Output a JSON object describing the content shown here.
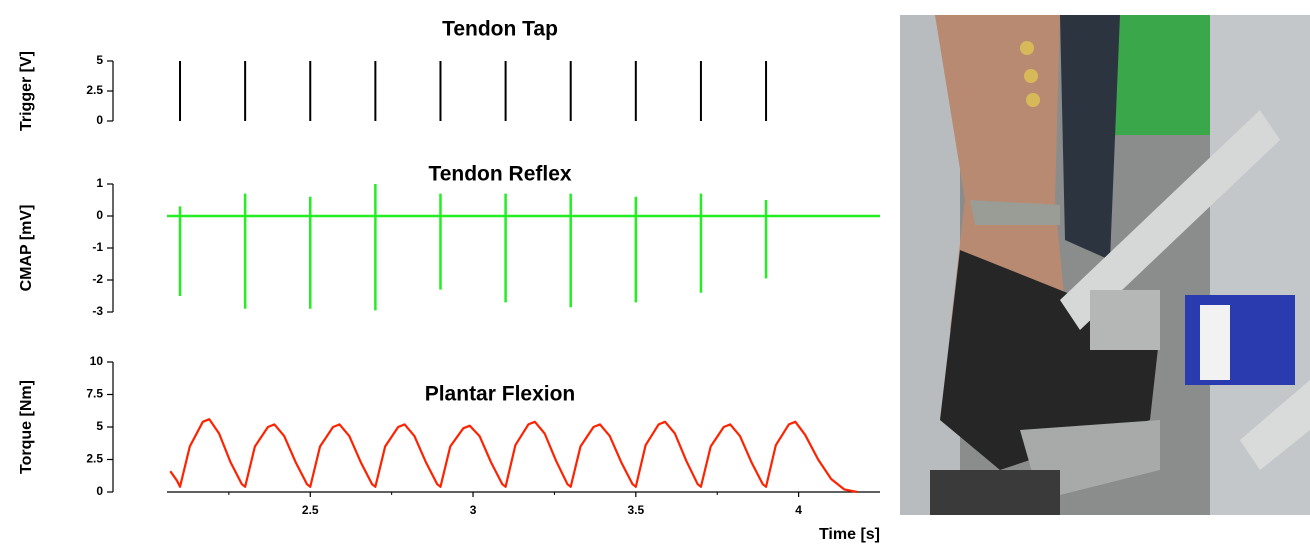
{
  "chart_data": [
    {
      "type": "impulse",
      "title": "Tendon Tap",
      "ylabel": "Trigger [V]",
      "color": "#000000",
      "xlim": [
        2.06,
        4.25
      ],
      "ylim": [
        0,
        5
      ],
      "yticks": [
        0,
        2.5,
        5
      ],
      "x": [
        2.1,
        2.3,
        2.5,
        2.7,
        2.9,
        3.1,
        3.3,
        3.5,
        3.7,
        3.9
      ],
      "values": [
        5,
        5,
        5,
        5,
        5,
        5,
        5,
        5,
        5,
        5
      ]
    },
    {
      "type": "spikes",
      "title": "Tendon Reflex",
      "ylabel": "CMAP [mV]",
      "color": "#22ee22",
      "xlim": [
        2.06,
        4.25
      ],
      "ylim": [
        -3,
        1
      ],
      "yticks": [
        1,
        0,
        -1,
        -2,
        -3
      ],
      "baseline": 0,
      "x": [
        2.1,
        2.3,
        2.5,
        2.7,
        2.9,
        3.1,
        3.3,
        3.5,
        3.7,
        3.9
      ],
      "max": [
        0.3,
        0.7,
        0.6,
        1.0,
        0.7,
        0.7,
        0.7,
        0.6,
        0.7,
        0.5
      ],
      "min": [
        -2.5,
        -2.9,
        -2.9,
        -2.95,
        -2.3,
        -2.7,
        -2.85,
        -2.7,
        -2.4,
        -1.95
      ]
    },
    {
      "type": "line",
      "title": "Plantar Flexion",
      "ylabel": "Torque [Nm]",
      "xlabel": "Time [s]",
      "color": "#ff2200",
      "xlim": [
        2.06,
        4.25
      ],
      "ylim": [
        0,
        10
      ],
      "yticks": [
        0,
        2.5,
        5,
        7.5,
        10
      ],
      "xticks": [
        2.5,
        3,
        3.5,
        4
      ],
      "xminorticks": [
        2.25,
        2.75,
        3.25,
        3.75
      ],
      "x": [
        2.07,
        2.09,
        2.1,
        2.13,
        2.17,
        2.19,
        2.22,
        2.255,
        2.29,
        2.3,
        2.33,
        2.37,
        2.39,
        2.42,
        2.455,
        2.49,
        2.5,
        2.53,
        2.57,
        2.59,
        2.62,
        2.655,
        2.69,
        2.7,
        2.73,
        2.77,
        2.79,
        2.82,
        2.855,
        2.89,
        2.9,
        2.93,
        2.97,
        2.99,
        3.02,
        3.055,
        3.09,
        3.1,
        3.13,
        3.17,
        3.19,
        3.22,
        3.255,
        3.29,
        3.3,
        3.33,
        3.37,
        3.39,
        3.42,
        3.455,
        3.49,
        3.5,
        3.53,
        3.57,
        3.59,
        3.62,
        3.655,
        3.69,
        3.7,
        3.73,
        3.77,
        3.79,
        3.82,
        3.855,
        3.89,
        3.9,
        3.93,
        3.97,
        3.99,
        4.02,
        4.06,
        4.1,
        4.14,
        4.18
      ],
      "values": [
        1.6,
        0.9,
        0.4,
        3.5,
        5.4,
        5.6,
        4.5,
        2.3,
        0.6,
        0.4,
        3.5,
        5.0,
        5.2,
        4.3,
        2.3,
        0.6,
        0.4,
        3.5,
        5.0,
        5.2,
        4.3,
        2.3,
        0.6,
        0.4,
        3.5,
        5.0,
        5.2,
        4.3,
        2.3,
        0.6,
        0.4,
        3.5,
        4.9,
        5.1,
        4.3,
        2.3,
        0.6,
        0.4,
        3.6,
        5.2,
        5.4,
        4.5,
        2.4,
        0.6,
        0.4,
        3.5,
        5.0,
        5.2,
        4.3,
        2.3,
        0.6,
        0.4,
        3.6,
        5.2,
        5.4,
        4.5,
        2.4,
        0.6,
        0.4,
        3.5,
        5.0,
        5.2,
        4.3,
        2.3,
        0.6,
        0.4,
        3.6,
        5.2,
        5.4,
        4.4,
        2.5,
        1.0,
        0.2,
        0
      ]
    }
  ]
}
